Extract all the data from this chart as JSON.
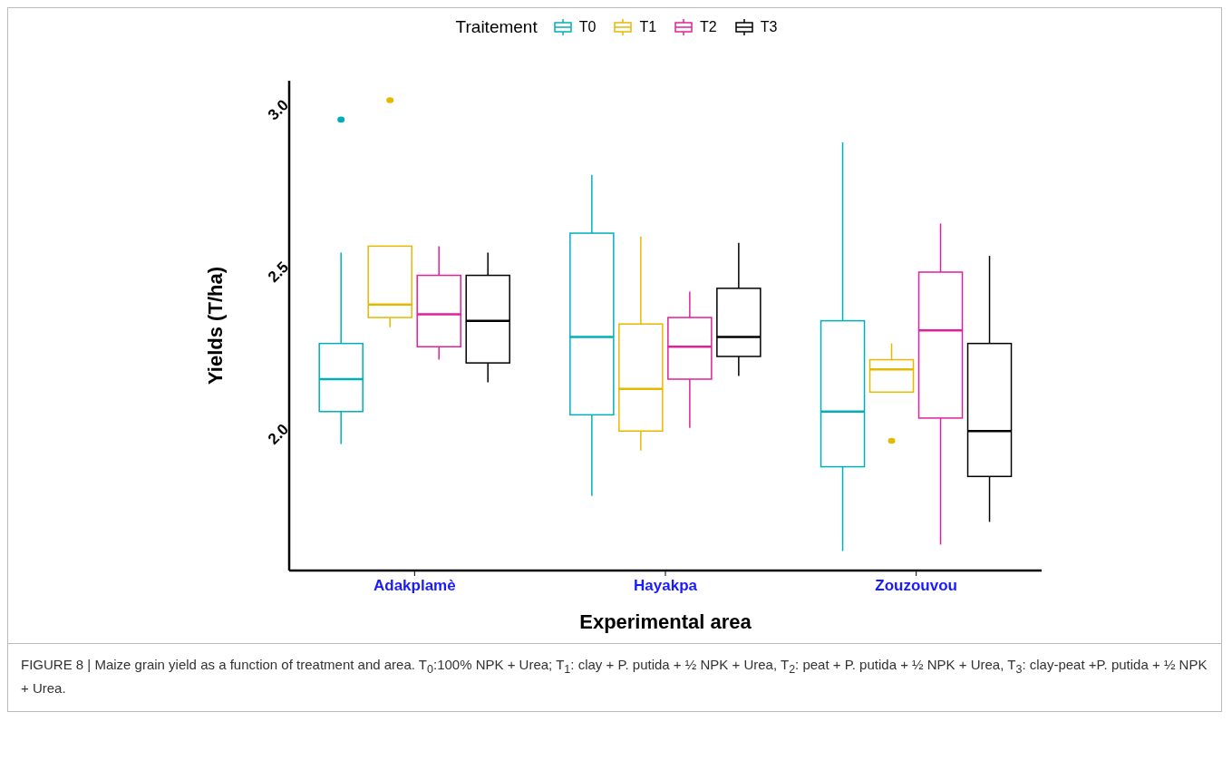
{
  "chart_data": {
    "type": "box",
    "xlabel": "Experimental area",
    "ylabel": "Yields  (T/ha)",
    "legend_title": "Traitement",
    "legend": "top",
    "categories": [
      "Adakplamè",
      "Hayakpa",
      "Zouzouvou"
    ],
    "ylim": [
      1.58,
      3.09
    ],
    "yticks": [
      {
        "value": 2,
        "label": "2.0"
      },
      {
        "value": 2.5,
        "label": "2.5"
      },
      {
        "value": 3,
        "label": "3.0"
      }
    ],
    "series": [
      {
        "name": "T0",
        "color": "#00afbb",
        "boxes": [
          {
            "low": 1.97,
            "q1": 2.07,
            "median": 2.17,
            "q3": 2.28,
            "high": 2.56,
            "outliers": [
              2.97
            ]
          },
          {
            "low": 1.81,
            "q1": 2.06,
            "median": 2.3,
            "q3": 2.62,
            "high": 2.8
          },
          {
            "low": 1.64,
            "q1": 1.9,
            "median": 2.07,
            "q3": 2.35,
            "high": 2.9
          }
        ]
      },
      {
        "name": "T1",
        "color": "#e7b800",
        "boxes": [
          {
            "low": 2.33,
            "q1": 2.36,
            "median": 2.4,
            "q3": 2.58,
            "high": 2.58,
            "outliers": [
              3.03
            ]
          },
          {
            "low": 1.95,
            "q1": 2.01,
            "median": 2.14,
            "q3": 2.34,
            "high": 2.61
          },
          {
            "low": 2.13,
            "q1": 2.13,
            "median": 2.2,
            "q3": 2.23,
            "high": 2.28,
            "outliers": [
              1.98
            ]
          }
        ]
      },
      {
        "name": "T2",
        "color": "#e0219b",
        "boxes": [
          {
            "low": 2.23,
            "q1": 2.27,
            "median": 2.37,
            "q3": 2.49,
            "high": 2.58
          },
          {
            "low": 2.02,
            "q1": 2.17,
            "median": 2.27,
            "q3": 2.36,
            "high": 2.44
          },
          {
            "low": 1.66,
            "q1": 2.05,
            "median": 2.32,
            "q3": 2.5,
            "high": 2.65
          }
        ]
      },
      {
        "name": "T3",
        "color": "#000000",
        "boxes": [
          {
            "low": 2.16,
            "q1": 2.22,
            "median": 2.35,
            "q3": 2.49,
            "high": 2.56
          },
          {
            "low": 2.18,
            "q1": 2.24,
            "median": 2.3,
            "q3": 2.45,
            "high": 2.59
          },
          {
            "low": 1.73,
            "q1": 1.87,
            "median": 2.01,
            "q3": 2.28,
            "high": 2.55
          }
        ]
      }
    ],
    "annotations": [
      "FIGURE 8 | Maize grain yield as a function of treatment and area. T$_{0}$:100% NPK + Urea; T$_{1}$: clay + P. putida + ½ NPK + Urea, T$_{2}$: peat + P. putida + ½ NPK + Urea, T$_{3}$: clay-peat +P. putida + ½ NPK + Urea."
    ]
  }
}
